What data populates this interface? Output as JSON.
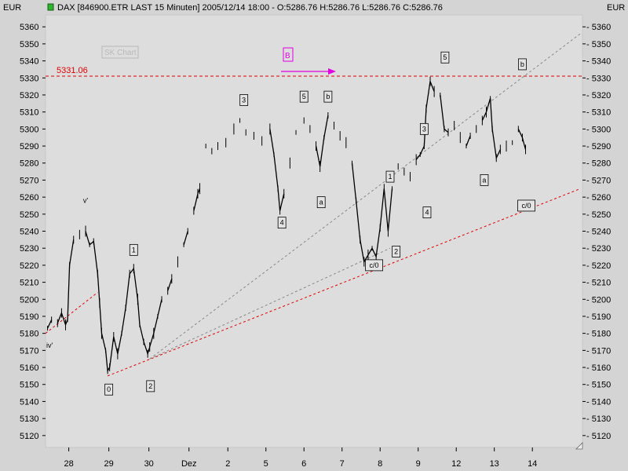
{
  "header": {
    "currency_left": "EUR",
    "currency_right": "EUR",
    "title": "DAX [846900.ETR LAST 15 Minuten] 2005/12/14 18:00 - O:5286.76 H:5286.76 L:5286.76 C:5286.76",
    "status_color": "#2db52d"
  },
  "watermark": "SK Chart",
  "chart_data": {
    "type": "line",
    "title": "DAX [846900.ETR LAST 15 Minuten] 2005/12/14 18:00 - O:5286.76 H:5286.76 L:5286.76 C:5286.76",
    "series_color": "#000000",
    "ylim": [
      5113,
      5367
    ],
    "xlim": [
      0,
      13.4
    ],
    "y_ticks": [
      5120,
      5130,
      5140,
      5150,
      5160,
      5170,
      5180,
      5190,
      5200,
      5210,
      5220,
      5230,
      5240,
      5250,
      5260,
      5270,
      5280,
      5290,
      5300,
      5310,
      5320,
      5330,
      5340,
      5350,
      5360
    ],
    "x_ticks": [
      {
        "x": 0.58,
        "label": "28"
      },
      {
        "x": 1.58,
        "label": "29"
      },
      {
        "x": 2.58,
        "label": "30"
      },
      {
        "x": 3.58,
        "label": "Dez"
      },
      {
        "x": 4.55,
        "label": "2"
      },
      {
        "x": 5.5,
        "label": "5"
      },
      {
        "x": 6.45,
        "label": "6"
      },
      {
        "x": 7.4,
        "label": "7"
      },
      {
        "x": 8.35,
        "label": "8"
      },
      {
        "x": 9.3,
        "label": "9"
      },
      {
        "x": 10.25,
        "label": "12"
      },
      {
        "x": 11.2,
        "label": "13"
      },
      {
        "x": 12.15,
        "label": "14"
      }
    ],
    "price_points": [
      [
        0.05,
        5183
      ],
      [
        0.15,
        5188
      ],
      [
        0.3,
        5186
      ],
      [
        0.4,
        5192
      ],
      [
        0.5,
        5185
      ],
      [
        0.55,
        5188
      ],
      [
        0.6,
        5220
      ],
      [
        0.7,
        5235
      ],
      [
        0.85,
        5238
      ],
      [
        1.0,
        5240
      ],
      [
        1.1,
        5232
      ],
      [
        1.2,
        5234
      ],
      [
        1.3,
        5215
      ],
      [
        1.35,
        5198
      ],
      [
        1.4,
        5180
      ],
      [
        1.5,
        5170
      ],
      [
        1.55,
        5158
      ],
      [
        1.6,
        5160
      ],
      [
        1.7,
        5178
      ],
      [
        1.8,
        5168
      ],
      [
        1.9,
        5180
      ],
      [
        2.0,
        5195
      ],
      [
        2.1,
        5215
      ],
      [
        2.2,
        5218
      ],
      [
        2.3,
        5200
      ],
      [
        2.35,
        5185
      ],
      [
        2.45,
        5175
      ],
      [
        2.55,
        5168
      ],
      [
        2.6,
        5172
      ],
      [
        2.7,
        5180
      ],
      [
        2.8,
        5190
      ],
      [
        2.9,
        5200
      ],
      [
        3.05,
        5205
      ],
      [
        3.15,
        5212
      ],
      [
        3.3,
        5222
      ],
      [
        3.45,
        5232
      ],
      [
        3.55,
        5240
      ],
      [
        3.7,
        5252
      ],
      [
        3.8,
        5262
      ],
      [
        3.85,
        5265
      ],
      [
        4.0,
        5290
      ],
      [
        4.15,
        5287
      ],
      [
        4.3,
        5290
      ],
      [
        4.5,
        5292
      ],
      [
        4.7,
        5300
      ],
      [
        4.85,
        5305
      ],
      [
        5.0,
        5298
      ],
      [
        5.2,
        5296
      ],
      [
        5.4,
        5293
      ],
      [
        5.6,
        5300
      ],
      [
        5.7,
        5285
      ],
      [
        5.8,
        5265
      ],
      [
        5.85,
        5252
      ],
      [
        5.95,
        5262
      ],
      [
        6.1,
        5280
      ],
      [
        6.25,
        5298
      ],
      [
        6.45,
        5305
      ],
      [
        6.6,
        5300
      ],
      [
        6.75,
        5290
      ],
      [
        6.85,
        5278
      ],
      [
        6.95,
        5295
      ],
      [
        7.05,
        5308
      ],
      [
        7.2,
        5302
      ],
      [
        7.35,
        5296
      ],
      [
        7.5,
        5292
      ],
      [
        7.65,
        5280
      ],
      [
        7.75,
        5258
      ],
      [
        7.85,
        5235
      ],
      [
        7.95,
        5222
      ],
      [
        8.05,
        5226
      ],
      [
        8.15,
        5230
      ],
      [
        8.25,
        5225
      ],
      [
        8.35,
        5242
      ],
      [
        8.45,
        5265
      ],
      [
        8.55,
        5240
      ],
      [
        8.65,
        5265
      ],
      [
        8.8,
        5278
      ],
      [
        8.95,
        5275
      ],
      [
        9.1,
        5272
      ],
      [
        9.25,
        5282
      ],
      [
        9.35,
        5285
      ],
      [
        9.45,
        5290
      ],
      [
        9.5,
        5312
      ],
      [
        9.6,
        5328
      ],
      [
        9.7,
        5322
      ],
      [
        9.85,
        5320
      ],
      [
        9.95,
        5300
      ],
      [
        10.05,
        5298
      ],
      [
        10.2,
        5302
      ],
      [
        10.35,
        5295
      ],
      [
        10.5,
        5290
      ],
      [
        10.6,
        5296
      ],
      [
        10.75,
        5300
      ],
      [
        10.9,
        5305
      ],
      [
        11.0,
        5310
      ],
      [
        11.1,
        5318
      ],
      [
        11.15,
        5300
      ],
      [
        11.25,
        5283
      ],
      [
        11.35,
        5288
      ],
      [
        11.5,
        5290
      ],
      [
        11.65,
        5292
      ],
      [
        11.8,
        5300
      ],
      [
        11.9,
        5295
      ],
      [
        11.98,
        5288
      ]
    ],
    "h_line": {
      "y": 5331.06,
      "label": "5331.06",
      "color": "#e00000"
    },
    "lines": [
      {
        "name": "red-trend-left",
        "color": "#e00000",
        "dash": "3,3",
        "from": [
          0.0,
          5180
        ],
        "to": [
          1.3,
          5204
        ]
      },
      {
        "name": "red-trend-main",
        "color": "#e00000",
        "dash": "3,3",
        "from": [
          1.55,
          5155
        ],
        "to": [
          13.35,
          5265
        ]
      },
      {
        "name": "gray-trend-1",
        "color": "#888888",
        "dash": "3,3",
        "from": [
          2.6,
          5165
        ],
        "to": [
          13.35,
          5356
        ]
      },
      {
        "name": "gray-trend-2",
        "color": "#888888",
        "dash": "3,3",
        "from": [
          2.6,
          5165
        ],
        "to": [
          8.6,
          5230
        ]
      }
    ],
    "annotations": [
      {
        "text": "v'",
        "x": 1.0,
        "y": 5258,
        "boxed": false
      },
      {
        "text": "iv'",
        "x": 0.1,
        "y": 5173,
        "boxed": false
      },
      {
        "text": "0",
        "x": 1.58,
        "y": 5147,
        "boxed": true
      },
      {
        "text": "1",
        "x": 2.2,
        "y": 5229,
        "boxed": true
      },
      {
        "text": "2",
        "x": 2.62,
        "y": 5149,
        "boxed": true
      },
      {
        "text": "3",
        "x": 4.95,
        "y": 5317,
        "boxed": true
      },
      {
        "text": "4",
        "x": 5.9,
        "y": 5245,
        "boxed": true
      },
      {
        "text": "5",
        "x": 6.45,
        "y": 5319,
        "boxed": true
      },
      {
        "text": "b",
        "x": 7.05,
        "y": 5319,
        "boxed": true
      },
      {
        "text": "a",
        "x": 6.88,
        "y": 5257,
        "boxed": true
      },
      {
        "text": "c/0",
        "x": 8.2,
        "y": 5220,
        "boxed": true
      },
      {
        "text": "1",
        "x": 8.6,
        "y": 5272,
        "boxed": true
      },
      {
        "text": "2",
        "x": 8.75,
        "y": 5228,
        "boxed": true
      },
      {
        "text": "3",
        "x": 9.45,
        "y": 5300,
        "boxed": true
      },
      {
        "text": "4",
        "x": 9.52,
        "y": 5251,
        "boxed": true
      },
      {
        "text": "5",
        "x": 9.97,
        "y": 5342,
        "boxed": true
      },
      {
        "text": "a",
        "x": 10.95,
        "y": 5270,
        "boxed": true
      },
      {
        "text": "b",
        "x": 11.9,
        "y": 5338,
        "boxed": true
      },
      {
        "text": "c/0",
        "x": 12.0,
        "y": 5255,
        "boxed": true
      }
    ],
    "marker_B": {
      "text": "B",
      "color": "#e000e0"
    }
  }
}
